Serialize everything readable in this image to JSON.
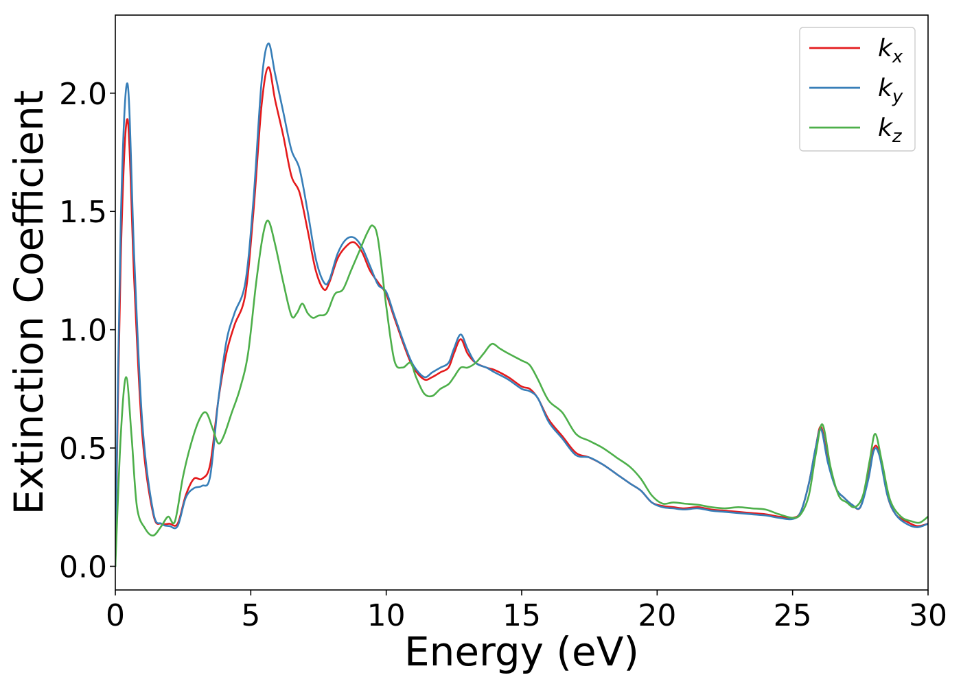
{
  "chart_data": {
    "type": "line",
    "title": "",
    "xlabel": "Energy (eV)",
    "ylabel": "Extinction Coefficient",
    "xlim": [
      0,
      30
    ],
    "ylim": [
      -0.1,
      2.33
    ],
    "xticks": [
      0,
      5,
      10,
      15,
      20,
      25,
      30
    ],
    "xtick_labels": [
      "0",
      "5",
      "10",
      "15",
      "20",
      "25",
      "30"
    ],
    "yticks": [
      0.0,
      0.5,
      1.0,
      1.5,
      2.0
    ],
    "ytick_labels": [
      "0.0",
      "0.5",
      "1.0",
      "1.5",
      "2.0"
    ],
    "grid": false,
    "legend_position": "top-right",
    "series": [
      {
        "name": "k_x",
        "label_main": "k",
        "label_sub": "x",
        "color": "#e41a1c",
        "x": [
          0,
          0.2,
          0.45,
          0.7,
          1.0,
          1.4,
          1.7,
          2.0,
          2.3,
          2.6,
          2.9,
          3.2,
          3.5,
          3.8,
          4.1,
          4.4,
          4.8,
          5.1,
          5.4,
          5.65,
          5.9,
          6.2,
          6.5,
          6.8,
          7.1,
          7.4,
          7.7,
          7.9,
          8.2,
          8.5,
          8.8,
          9.1,
          9.4,
          9.7,
          10.0,
          10.3,
          10.7,
          11.0,
          11.4,
          11.7,
          12.0,
          12.3,
          12.5,
          12.75,
          13.0,
          13.3,
          13.7,
          14.0,
          14.5,
          15.0,
          15.3,
          15.6,
          16.0,
          16.5,
          17.0,
          17.5,
          18.0,
          18.5,
          19.0,
          19.4,
          19.8,
          20.2,
          20.6,
          21.0,
          21.5,
          22.0,
          22.5,
          23.0,
          23.5,
          24.0,
          24.5,
          25.0,
          25.3,
          25.6,
          25.85,
          26.05,
          26.3,
          26.6,
          26.9,
          27.2,
          27.5,
          27.8,
          28.0,
          28.2,
          28.5,
          28.8,
          29.2,
          29.6,
          30.0
        ],
        "y": [
          0.0,
          1.3,
          1.89,
          1.2,
          0.55,
          0.22,
          0.18,
          0.18,
          0.18,
          0.3,
          0.37,
          0.37,
          0.43,
          0.7,
          0.9,
          1.02,
          1.15,
          1.5,
          1.95,
          2.11,
          1.97,
          1.82,
          1.65,
          1.58,
          1.42,
          1.25,
          1.17,
          1.2,
          1.3,
          1.35,
          1.37,
          1.33,
          1.25,
          1.2,
          1.15,
          1.05,
          0.92,
          0.84,
          0.79,
          0.8,
          0.82,
          0.84,
          0.9,
          0.96,
          0.9,
          0.86,
          0.84,
          0.83,
          0.8,
          0.76,
          0.75,
          0.71,
          0.62,
          0.55,
          0.48,
          0.46,
          0.43,
          0.39,
          0.35,
          0.32,
          0.27,
          0.255,
          0.25,
          0.245,
          0.25,
          0.24,
          0.235,
          0.23,
          0.225,
          0.22,
          0.21,
          0.205,
          0.23,
          0.35,
          0.5,
          0.59,
          0.45,
          0.33,
          0.29,
          0.26,
          0.25,
          0.38,
          0.5,
          0.48,
          0.3,
          0.22,
          0.19,
          0.17,
          0.18
        ]
      },
      {
        "name": "k_y",
        "label_main": "k",
        "label_sub": "y",
        "color": "#377eb8",
        "x": [
          0,
          0.2,
          0.45,
          0.7,
          1.0,
          1.4,
          1.7,
          2.0,
          2.3,
          2.6,
          2.9,
          3.2,
          3.5,
          3.8,
          4.1,
          4.4,
          4.8,
          5.1,
          5.4,
          5.65,
          5.9,
          6.2,
          6.5,
          6.8,
          7.1,
          7.4,
          7.7,
          7.9,
          8.2,
          8.5,
          8.8,
          9.1,
          9.4,
          9.7,
          10.0,
          10.3,
          10.7,
          11.0,
          11.4,
          11.7,
          12.0,
          12.3,
          12.5,
          12.75,
          13.0,
          13.3,
          13.7,
          14.0,
          14.5,
          15.0,
          15.3,
          15.6,
          16.0,
          16.5,
          17.0,
          17.5,
          18.0,
          18.5,
          19.0,
          19.4,
          19.8,
          20.2,
          20.6,
          21.0,
          21.5,
          22.0,
          22.5,
          23.0,
          23.5,
          24.0,
          24.5,
          25.0,
          25.3,
          25.6,
          25.85,
          26.05,
          26.3,
          26.6,
          26.9,
          27.2,
          27.5,
          27.8,
          28.0,
          28.2,
          28.5,
          28.8,
          29.2,
          29.6,
          30.0
        ],
        "y": [
          0.0,
          1.45,
          2.04,
          1.3,
          0.6,
          0.23,
          0.18,
          0.17,
          0.17,
          0.29,
          0.33,
          0.34,
          0.38,
          0.7,
          0.95,
          1.07,
          1.2,
          1.55,
          2.05,
          2.21,
          2.08,
          1.92,
          1.76,
          1.68,
          1.5,
          1.3,
          1.2,
          1.21,
          1.32,
          1.38,
          1.39,
          1.35,
          1.27,
          1.19,
          1.16,
          1.06,
          0.93,
          0.85,
          0.8,
          0.82,
          0.84,
          0.86,
          0.92,
          0.98,
          0.92,
          0.86,
          0.84,
          0.82,
          0.79,
          0.75,
          0.74,
          0.71,
          0.61,
          0.54,
          0.47,
          0.46,
          0.43,
          0.39,
          0.35,
          0.32,
          0.27,
          0.25,
          0.245,
          0.24,
          0.245,
          0.235,
          0.23,
          0.225,
          0.22,
          0.215,
          0.205,
          0.2,
          0.23,
          0.35,
          0.5,
          0.58,
          0.44,
          0.33,
          0.29,
          0.26,
          0.25,
          0.37,
          0.49,
          0.47,
          0.3,
          0.22,
          0.18,
          0.165,
          0.18
        ]
      },
      {
        "name": "k_z",
        "label_main": "k",
        "label_sub": "z",
        "color": "#4daf4a",
        "x": [
          0,
          0.2,
          0.4,
          0.6,
          0.8,
          1.1,
          1.4,
          1.7,
          1.95,
          2.2,
          2.5,
          2.8,
          3.1,
          3.35,
          3.6,
          3.8,
          4.0,
          4.3,
          4.6,
          4.9,
          5.2,
          5.45,
          5.65,
          5.9,
          6.2,
          6.5,
          6.7,
          6.9,
          7.1,
          7.3,
          7.5,
          7.8,
          8.1,
          8.4,
          8.7,
          9.0,
          9.3,
          9.5,
          9.7,
          10.0,
          10.3,
          10.6,
          10.9,
          11.1,
          11.4,
          11.7,
          12.0,
          12.3,
          12.5,
          12.75,
          13.0,
          13.3,
          13.6,
          13.9,
          14.2,
          14.5,
          15.0,
          15.3,
          15.6,
          16.0,
          16.5,
          17.0,
          17.5,
          18.0,
          18.5,
          19.0,
          19.4,
          19.8,
          20.2,
          20.6,
          21.0,
          21.5,
          22.0,
          22.5,
          23.0,
          23.5,
          24.0,
          24.5,
          25.0,
          25.3,
          25.6,
          25.85,
          26.1,
          26.4,
          26.7,
          27.0,
          27.3,
          27.6,
          27.85,
          28.05,
          28.3,
          28.6,
          29.0,
          29.4,
          29.7,
          30.0
        ],
        "y": [
          0.0,
          0.55,
          0.8,
          0.55,
          0.25,
          0.16,
          0.13,
          0.17,
          0.21,
          0.19,
          0.38,
          0.52,
          0.62,
          0.65,
          0.58,
          0.52,
          0.55,
          0.65,
          0.75,
          0.9,
          1.2,
          1.4,
          1.46,
          1.36,
          1.2,
          1.06,
          1.07,
          1.11,
          1.07,
          1.05,
          1.06,
          1.07,
          1.15,
          1.17,
          1.25,
          1.33,
          1.41,
          1.44,
          1.38,
          1.1,
          0.87,
          0.84,
          0.86,
          0.8,
          0.73,
          0.72,
          0.75,
          0.77,
          0.8,
          0.84,
          0.84,
          0.86,
          0.9,
          0.94,
          0.92,
          0.9,
          0.87,
          0.85,
          0.79,
          0.7,
          0.65,
          0.56,
          0.53,
          0.5,
          0.46,
          0.42,
          0.37,
          0.3,
          0.265,
          0.27,
          0.265,
          0.26,
          0.25,
          0.245,
          0.25,
          0.245,
          0.24,
          0.22,
          0.205,
          0.22,
          0.3,
          0.47,
          0.6,
          0.42,
          0.3,
          0.27,
          0.25,
          0.3,
          0.45,
          0.56,
          0.44,
          0.28,
          0.21,
          0.19,
          0.185,
          0.21
        ]
      }
    ]
  }
}
